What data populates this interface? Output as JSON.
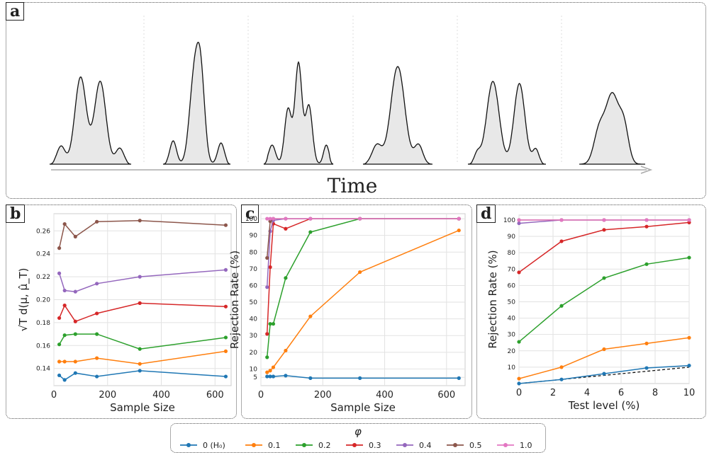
{
  "panels": {
    "a": {
      "label": "a",
      "xlabel": "Time"
    },
    "b": {
      "label": "b"
    },
    "c": {
      "label": "c"
    },
    "d": {
      "label": "d"
    }
  },
  "legend": {
    "title": "φ",
    "items": [
      {
        "label": "0 (H₀)",
        "color": "#1f77b4"
      },
      {
        "label": "0.1",
        "color": "#ff7f0e"
      },
      {
        "label": "0.2",
        "color": "#2ca02c"
      },
      {
        "label": "0.3",
        "color": "#d62728"
      },
      {
        "label": "0.4",
        "color": "#9467bd"
      },
      {
        "label": "0.5",
        "color": "#8c564b"
      },
      {
        "label": "1.0",
        "color": "#e377c2"
      }
    ]
  },
  "chart_data": [
    {
      "panel": "b",
      "type": "line",
      "xlabel": "Sample Size",
      "ylabel": "√T d(μ, μ̂_T)",
      "x": [
        20,
        40,
        80,
        160,
        320,
        640
      ],
      "xlim": [
        0,
        660
      ],
      "xticks": [
        "0",
        "200",
        "400",
        "600"
      ],
      "ylim": [
        0.125,
        0.275
      ],
      "yticks": [
        "0.14",
        "0.16",
        "0.18",
        "0.20",
        "0.22",
        "0.24",
        "0.26"
      ],
      "grid": true,
      "series": [
        {
          "name": "0 (H₀)",
          "values": [
            0.134,
            0.13,
            0.136,
            0.133,
            0.138,
            0.133
          ]
        },
        {
          "name": "0.1",
          "values": [
            0.146,
            0.146,
            0.146,
            0.149,
            0.144,
            0.155
          ]
        },
        {
          "name": "0.2",
          "values": [
            0.161,
            0.169,
            0.17,
            0.17,
            0.157,
            0.167
          ]
        },
        {
          "name": "0.3",
          "values": [
            0.184,
            0.195,
            0.181,
            0.188,
            0.197,
            0.194
          ]
        },
        {
          "name": "0.4",
          "values": [
            0.223,
            0.208,
            0.207,
            0.214,
            0.22,
            0.226
          ]
        },
        {
          "name": "0.5",
          "values": [
            0.245,
            0.266,
            0.255,
            0.268,
            0.269,
            0.265
          ]
        }
      ]
    },
    {
      "panel": "c",
      "type": "line",
      "xlabel": "Sample Size",
      "ylabel": "Rejection Rate (%)",
      "x": [
        20,
        40,
        80,
        160,
        320,
        640
      ],
      "xlim": [
        0,
        660
      ],
      "xticks": [
        "0",
        "200",
        "400",
        "600"
      ],
      "ylim": [
        0,
        103
      ],
      "yticks": [
        "5",
        "10",
        "20",
        "30",
        "40",
        "50",
        "60",
        "70",
        "80",
        "90",
        "100"
      ],
      "grid": true,
      "series": [
        {
          "name": "0 (H₀)",
          "x": [
            20,
            30,
            40,
            80,
            160,
            320,
            640
          ],
          "values": [
            5.5,
            5.5,
            5.5,
            6,
            4.5,
            4.5,
            4.5
          ]
        },
        {
          "name": "0.1",
          "x": [
            20,
            30,
            40,
            80,
            160,
            320,
            640
          ],
          "values": [
            8,
            9,
            11,
            21,
            41.5,
            68,
            93
          ]
        },
        {
          "name": "0.2",
          "x": [
            20,
            30,
            40,
            80,
            160,
            320,
            640
          ],
          "values": [
            17,
            37,
            37,
            64.5,
            92,
            100,
            100
          ]
        },
        {
          "name": "0.3",
          "x": [
            20,
            30,
            40,
            80,
            160,
            320,
            640
          ],
          "values": [
            31,
            71,
            97,
            94,
            100,
            100,
            100
          ]
        },
        {
          "name": "0.4",
          "x": [
            20,
            30,
            40,
            80,
            160,
            320,
            640
          ],
          "values": [
            59,
            92.5,
            99,
            100,
            100,
            100,
            100
          ]
        },
        {
          "name": "0.5",
          "x": [
            20,
            30,
            40,
            80,
            160,
            320,
            640
          ],
          "values": [
            76.5,
            98.5,
            100,
            100,
            100,
            100,
            100
          ]
        },
        {
          "name": "1.0",
          "x": [
            20,
            30,
            40,
            80,
            160,
            320,
            640
          ],
          "values": [
            100,
            100,
            100,
            100,
            100,
            100,
            100
          ]
        }
      ]
    },
    {
      "panel": "d",
      "type": "line",
      "xlabel": "Test level (%)",
      "ylabel": "Rejection Rate (%)",
      "x": [
        0,
        2.5,
        5,
        7.5,
        10
      ],
      "xlim": [
        0,
        10
      ],
      "xticks": [
        "0",
        "2",
        "4",
        "6",
        "8",
        "10"
      ],
      "ylim": [
        0,
        103
      ],
      "yticks": [
        "10",
        "20",
        "30",
        "40",
        "50",
        "60",
        "70",
        "80",
        "90",
        "100"
      ],
      "grid": true,
      "reference_line": "dashed black diagonal y = x",
      "series": [
        {
          "name": "0 (H₀)",
          "values": [
            0,
            2.5,
            6,
            9.5,
            11
          ]
        },
        {
          "name": "0.1",
          "values": [
            3,
            10,
            21,
            24.5,
            28
          ]
        },
        {
          "name": "0.2",
          "values": [
            25.5,
            47.5,
            64.5,
            73,
            77
          ]
        },
        {
          "name": "0.3",
          "values": [
            68,
            87,
            94,
            96,
            98.5
          ]
        },
        {
          "name": "0.4",
          "values": [
            98,
            100,
            100,
            100,
            100
          ]
        },
        {
          "name": "0.5",
          "values": [
            100,
            100,
            100,
            100,
            100
          ]
        },
        {
          "name": "1.0",
          "values": [
            100,
            100,
            100,
            100,
            100
          ]
        }
      ]
    }
  ]
}
